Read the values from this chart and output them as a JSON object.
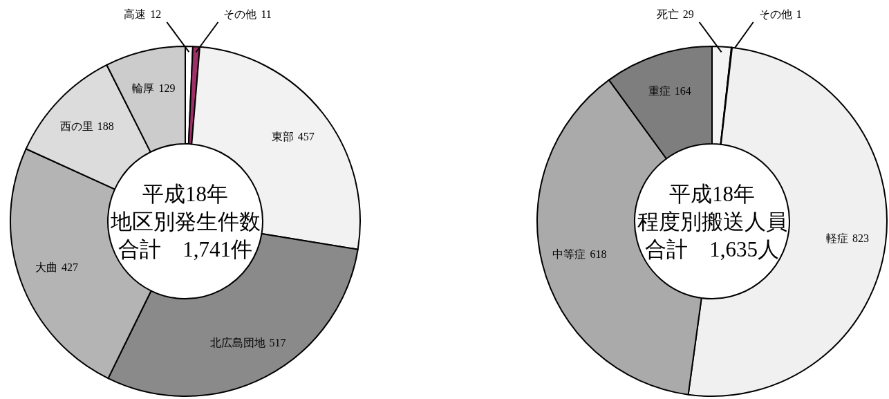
{
  "chart_data": [
    {
      "type": "donut",
      "title": "平成18年",
      "subtitle": "地区別発生件数",
      "annotations": [
        "合計　1,741件"
      ],
      "categories": [
        "高速",
        "その他",
        "東部",
        "北広島団地",
        "大曲",
        "西の里",
        "輪厚"
      ],
      "values": [
        12,
        11,
        457,
        517,
        427,
        188,
        129
      ],
      "colors": [
        "#ffffff",
        "#9e2f68",
        "#f2f2f2",
        "#8a8a8a",
        "#b4b4b4",
        "#dcdcdc",
        "#cccccc"
      ],
      "data_labels": true
    },
    {
      "type": "donut",
      "title": "平成18年",
      "subtitle": "程度別搬送人員",
      "annotations": [
        "合計　1,635人"
      ],
      "categories": [
        "死亡",
        "その他",
        "軽症",
        "中等症",
        "重症"
      ],
      "values": [
        29,
        1,
        823,
        618,
        164
      ],
      "colors": [
        "#f4f4f4",
        "#ffffff",
        "#f0f0f0",
        "#aaaaaa",
        "#7e7e7e"
      ],
      "data_labels": true
    }
  ]
}
